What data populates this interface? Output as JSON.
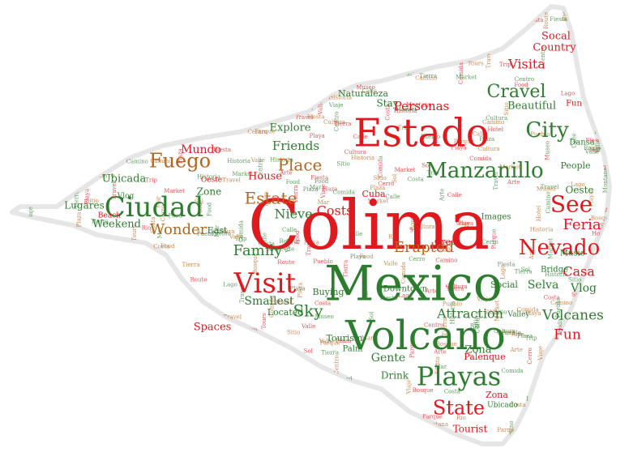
{
  "colors": {
    "red": "#e0191f",
    "green": "#2d7d2e",
    "brown": "#b5651d",
    "outline": "#e9e9e9"
  },
  "words": [
    {
      "text": "Colima",
      "color": "red"
    },
    {
      "text": "Mexico",
      "color": "green"
    },
    {
      "text": "Volcano",
      "color": "green"
    },
    {
      "text": "Estado",
      "color": "red"
    },
    {
      "text": "Ciudad",
      "color": "green"
    },
    {
      "text": "Manzanillo",
      "color": "green"
    },
    {
      "text": "Playas",
      "color": "green"
    },
    {
      "text": "Fuego",
      "color": "brown"
    },
    {
      "text": "Visit",
      "color": "red"
    },
    {
      "text": "Estate",
      "color": "brown"
    },
    {
      "text": "Place",
      "color": "brown"
    },
    {
      "text": "City",
      "color": "green"
    },
    {
      "text": "See",
      "color": "red"
    },
    {
      "text": "Nevado",
      "color": "red"
    },
    {
      "text": "Erupted",
      "color": "brown"
    },
    {
      "text": "Wonder",
      "color": "brown"
    },
    {
      "text": "Cravel",
      "color": "green"
    },
    {
      "text": "State",
      "color": "red"
    },
    {
      "text": "Feria",
      "color": "red"
    },
    {
      "text": "Volcanes",
      "color": "green"
    },
    {
      "text": "Fun",
      "color": "red"
    },
    {
      "text": "Vlog",
      "color": "green"
    },
    {
      "text": "Casa",
      "color": "red"
    },
    {
      "text": "Selva",
      "color": "green"
    },
    {
      "text": "Attraction",
      "color": "green"
    },
    {
      "text": "Oeste",
      "color": "green"
    },
    {
      "text": "Family",
      "color": "green"
    },
    {
      "text": "Costs",
      "color": "red"
    },
    {
      "text": "Nieve",
      "color": "green"
    },
    {
      "text": "Sky",
      "color": "green"
    },
    {
      "text": "Smallest",
      "color": "green"
    },
    {
      "text": "Gente",
      "color": "green"
    },
    {
      "text": "Zona",
      "color": "green"
    },
    {
      "text": "Visita",
      "color": "red"
    },
    {
      "text": "Friends",
      "color": "green"
    },
    {
      "text": "Mundo",
      "color": "red"
    },
    {
      "text": "Personas",
      "color": "red"
    },
    {
      "text": "Beautiful",
      "color": "green"
    },
    {
      "text": "Country",
      "color": "red"
    },
    {
      "text": "Socal",
      "color": "red"
    },
    {
      "text": "People",
      "color": "green"
    },
    {
      "text": "House",
      "color": "red"
    },
    {
      "text": "Explore",
      "color": "green"
    },
    {
      "text": "Ubicada",
      "color": "green"
    },
    {
      "text": "Zone",
      "color": "green"
    },
    {
      "text": "Stay",
      "color": "green"
    },
    {
      "text": "Naturaleza",
      "color": "green"
    },
    {
      "text": "Weekend",
      "color": "green"
    },
    {
      "text": "Lugares",
      "color": "green"
    },
    {
      "text": "Oeste",
      "color": "red"
    },
    {
      "text": "Cuba",
      "color": "red"
    },
    {
      "text": "Buying",
      "color": "green"
    },
    {
      "text": "Located",
      "color": "green"
    },
    {
      "text": "Spaces",
      "color": "red"
    },
    {
      "text": "Palm",
      "color": "green"
    },
    {
      "text": "Tourism",
      "color": "green"
    },
    {
      "text": "Drink",
      "color": "green"
    },
    {
      "text": "Palenque",
      "color": "red"
    },
    {
      "text": "Tourist",
      "color": "red"
    },
    {
      "text": "Social",
      "color": "green"
    },
    {
      "text": "Music",
      "color": "green"
    },
    {
      "text": "Bridge",
      "color": "green"
    },
    {
      "text": "Zona",
      "color": "red"
    },
    {
      "text": "Ubicado",
      "color": "green"
    },
    {
      "text": "East",
      "color": "green"
    },
    {
      "text": "Crees",
      "color": "red"
    },
    {
      "text": "Downtown",
      "color": "green"
    },
    {
      "text": "Dansa",
      "color": "green"
    },
    {
      "text": "Fun",
      "color": "red"
    },
    {
      "text": "Vlog",
      "color": "green"
    },
    {
      "text": "Beach",
      "color": "red"
    },
    {
      "text": "Images",
      "color": "green"
    },
    {
      "text": "Valley",
      "color": "green"
    }
  ],
  "filler_words": [
    "Travel",
    "Calle",
    "Plaza",
    "Sitio",
    "Tierra",
    "Parque",
    "Playa",
    "Arte",
    "Comida",
    "Cultura",
    "Historia",
    "Museo",
    "Cerro",
    "Lago",
    "Costa",
    "Mar",
    "Rio",
    "Sol",
    "Tours",
    "Hotel",
    "Route",
    "Trip",
    "Food",
    "Market",
    "Fiesta",
    "Montana",
    "Valle",
    "Bosque",
    "Pueblo",
    "Centro",
    "Viaje",
    "Camino"
  ]
}
